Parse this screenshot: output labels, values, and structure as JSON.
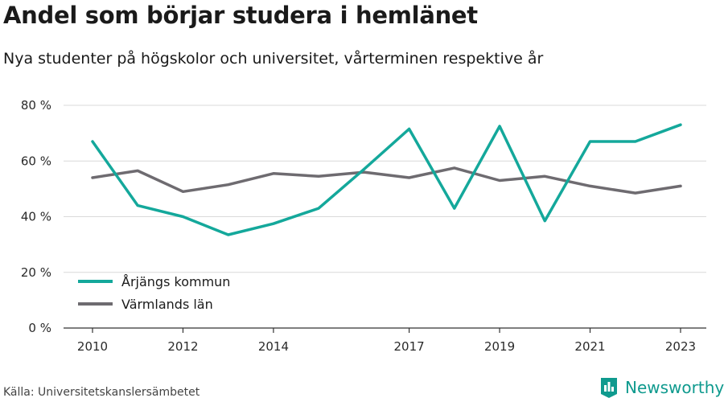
{
  "header": {
    "title": "Andel som börjar studera i hemlänet",
    "subtitle": "Nya studenter på högskolor och universitet, vårterminen respektive år"
  },
  "footer": {
    "source": "Källa: Universitetskanslersämbetet",
    "brand": "Newsworthy",
    "brand_icon": "bar-chart-logo-icon"
  },
  "colors": {
    "series_1": "#14a89b",
    "series_2": "#6e6b70",
    "grid": "#d9d9d9",
    "axis": "#333333",
    "brand": "#0f9a8e"
  },
  "chart_data": {
    "type": "line",
    "x": [
      2010,
      2011,
      2012,
      2013,
      2014,
      2015,
      2016,
      2017,
      2018,
      2019,
      2020,
      2021,
      2022,
      2023
    ],
    "x_tick_labels": [
      "2010",
      "2012",
      "2014",
      "2017",
      "2019",
      "2021",
      "2023"
    ],
    "y_ticks": [
      0,
      20,
      40,
      60,
      80
    ],
    "y_tick_labels": [
      "0 %",
      "20 %",
      "40 %",
      "60 %",
      "80 %"
    ],
    "ylim": [
      0,
      80
    ],
    "grid": true,
    "legend_position": "bottom-left",
    "series": [
      {
        "name": "Årjängs kommun",
        "values": [
          67,
          44,
          40,
          33.5,
          37.5,
          43,
          57,
          71.5,
          43,
          72.5,
          38.5,
          67,
          67,
          73
        ]
      },
      {
        "name": "Värmlands län",
        "values": [
          54,
          56.5,
          49,
          51.5,
          55.5,
          54.5,
          56,
          54,
          57.5,
          53,
          54.5,
          51,
          48.5,
          51
        ]
      }
    ]
  }
}
